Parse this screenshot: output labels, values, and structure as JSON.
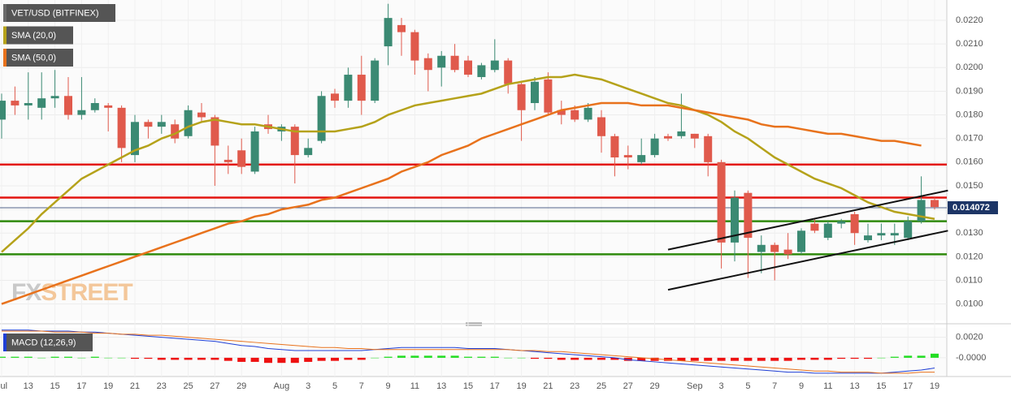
{
  "chart_data": [
    {
      "type": "candlestick",
      "watermark": [
        "FX",
        "STREET"
      ],
      "categories": [
        "Jul",
        null,
        "13",
        null,
        "15",
        null,
        "17",
        null,
        "19",
        null,
        "21",
        null,
        "23",
        null,
        "25",
        null,
        "27",
        null,
        "29",
        null,
        null,
        "Aug",
        null,
        "3",
        null,
        "5",
        null,
        "7",
        null,
        "9",
        null,
        "11",
        null,
        "13",
        null,
        "15",
        null,
        "17",
        null,
        "19",
        null,
        "21",
        null,
        "23",
        null,
        "25",
        null,
        "27",
        null,
        "29",
        null,
        null,
        "Sep",
        null,
        "3",
        null,
        "5",
        null,
        "7",
        null,
        "9",
        null,
        "11",
        null,
        "13",
        null,
        "15",
        null,
        "17",
        null,
        "19"
      ],
      "up_color": "#3b8a73",
      "down_color": "#e05a4c",
      "series": [
        {
          "name": "VET/USD (BITFINEX)",
          "color": "#6b6b6b",
          "open": [
            0.0178,
            0.0186,
            0.0184,
            0.0183,
            0.0187,
            0.0188,
            0.018,
            0.0182,
            0.0184,
            0.0183,
            0.0163,
            0.0177,
            0.0175,
            0.0176,
            0.0171,
            0.0181,
            0.0179,
            0.0161,
            0.0165,
            0.0156,
            0.0176,
            0.0173,
            0.0175,
            0.0163,
            0.0169,
            0.0189,
            0.0186,
            0.0197,
            0.0186,
            0.0209,
            0.0218,
            0.0215,
            0.0204,
            0.02,
            0.0205,
            0.0203,
            0.0196,
            0.0199,
            0.0203,
            0.0193,
            0.0185,
            0.0195,
            0.0182,
            0.0182,
            0.0178,
            0.0179,
            0.0171,
            0.0163,
            0.016,
            0.0163,
            0.0171,
            0.0171,
            0.0172,
            0.0171,
            0.016,
            0.0126,
            0.0147,
            0.0122,
            0.0125,
            0.0123,
            0.0122,
            0.0134,
            0.0128,
            0.0134,
            0.0138,
            0.0127,
            0.0129,
            0.0129,
            0.0128,
            0.0135,
            0.0144
          ],
          "high": [
            0.0189,
            0.0192,
            0.0198,
            0.0198,
            0.0199,
            0.0196,
            0.0196,
            0.0187,
            0.0185,
            0.0184,
            0.018,
            0.0178,
            0.018,
            0.0178,
            0.0184,
            0.0185,
            0.018,
            0.0167,
            0.017,
            0.0175,
            0.018,
            0.0176,
            0.0176,
            0.017,
            0.019,
            0.0191,
            0.02,
            0.0205,
            0.0204,
            0.0227,
            0.0221,
            0.0216,
            0.0206,
            0.0207,
            0.021,
            0.0205,
            0.0202,
            0.0212,
            0.0204,
            0.0194,
            0.0196,
            0.0198,
            0.0186,
            0.0184,
            0.0185,
            0.0182,
            0.0172,
            0.0167,
            0.017,
            0.0172,
            0.0172,
            0.0189,
            0.0172,
            0.0172,
            0.0161,
            0.0148,
            0.0148,
            0.0129,
            0.0126,
            0.013,
            0.0132,
            0.0136,
            0.0135,
            0.0136,
            0.0139,
            0.0134,
            0.0134,
            0.0134,
            0.0137,
            0.0154,
            0.0145
          ],
          "low": [
            0.017,
            0.018,
            0.0178,
            0.0178,
            0.0183,
            0.0178,
            0.0178,
            0.0181,
            0.0173,
            0.016,
            0.016,
            0.017,
            0.0172,
            0.0168,
            0.017,
            0.0177,
            0.015,
            0.0155,
            0.0155,
            0.0155,
            0.0172,
            0.0169,
            0.0151,
            0.0162,
            0.0168,
            0.0183,
            0.0183,
            0.018,
            0.0185,
            0.0201,
            0.0205,
            0.0197,
            0.019,
            0.0192,
            0.0198,
            0.0196,
            0.0195,
            0.0198,
            0.0189,
            0.0169,
            0.0182,
            0.018,
            0.0176,
            0.0177,
            0.0177,
            0.0164,
            0.0154,
            0.0157,
            0.0159,
            0.0162,
            0.0169,
            0.017,
            0.0166,
            0.0154,
            0.0115,
            0.0118,
            0.0111,
            0.0113,
            0.011,
            0.0119,
            0.0121,
            0.013,
            0.0127,
            0.0132,
            0.0125,
            0.0126,
            0.0127,
            0.0125,
            0.0127,
            0.0134,
            0.014
          ],
          "close": [
            0.0186,
            0.0184,
            0.0185,
            0.0187,
            0.0188,
            0.018,
            0.0182,
            0.0185,
            0.0183,
            0.0166,
            0.0177,
            0.0175,
            0.0177,
            0.017,
            0.0182,
            0.0179,
            0.0167,
            0.016,
            0.0158,
            0.0173,
            0.0174,
            0.0175,
            0.0163,
            0.0166,
            0.0188,
            0.0186,
            0.0197,
            0.0186,
            0.0203,
            0.0221,
            0.0215,
            0.0203,
            0.0199,
            0.0205,
            0.0199,
            0.0197,
            0.0201,
            0.0203,
            0.0193,
            0.0182,
            0.0194,
            0.0181,
            0.018,
            0.0178,
            0.0183,
            0.0171,
            0.0162,
            0.0162,
            0.0163,
            0.017,
            0.017,
            0.0173,
            0.017,
            0.016,
            0.0126,
            0.0145,
            0.0128,
            0.0125,
            0.0122,
            0.0121,
            0.0131,
            0.0131,
            0.0134,
            0.0135,
            0.013,
            0.0129,
            0.013,
            0.013,
            0.0135,
            0.0144,
            0.0141
          ]
        },
        {
          "name": "SMA (20,0)",
          "color": "#b5a21a",
          "values": [
            0.0122,
            0.0127,
            0.0132,
            0.0138,
            0.0143,
            0.0148,
            0.0153,
            0.0156,
            0.0159,
            0.0162,
            0.0165,
            0.0167,
            0.017,
            0.0172,
            0.0175,
            0.0177,
            0.0178,
            0.0177,
            0.0176,
            0.0176,
            0.0175,
            0.0174,
            0.0173,
            0.0173,
            0.0173,
            0.0173,
            0.0174,
            0.0175,
            0.0177,
            0.018,
            0.0182,
            0.0184,
            0.0185,
            0.0186,
            0.0187,
            0.0188,
            0.0189,
            0.0191,
            0.0193,
            0.0194,
            0.0195,
            0.0196,
            0.0196,
            0.0197,
            0.0196,
            0.0195,
            0.0193,
            0.0191,
            0.0189,
            0.0187,
            0.0185,
            0.0184,
            0.0182,
            0.018,
            0.0177,
            0.0173,
            0.017,
            0.0166,
            0.0162,
            0.0159,
            0.0156,
            0.0153,
            0.0151,
            0.0149,
            0.0146,
            0.0143,
            0.0141,
            0.0139,
            0.0138,
            0.0137,
            0.0136
          ]
        },
        {
          "name": "SMA (50,0)",
          "color": "#e8721c",
          "values": [
            0.01,
            0.0102,
            0.0104,
            0.0106,
            0.0108,
            0.011,
            0.0112,
            0.0114,
            0.0116,
            0.0118,
            0.012,
            0.0122,
            0.0124,
            0.0126,
            0.0128,
            0.013,
            0.0132,
            0.0134,
            0.0135,
            0.0137,
            0.0138,
            0.014,
            0.0141,
            0.0142,
            0.0144,
            0.0145,
            0.0147,
            0.0149,
            0.0151,
            0.0153,
            0.0156,
            0.0158,
            0.016,
            0.0163,
            0.0165,
            0.0167,
            0.017,
            0.0172,
            0.0174,
            0.0176,
            0.0178,
            0.018,
            0.0182,
            0.0183,
            0.0184,
            0.0185,
            0.0185,
            0.0185,
            0.0184,
            0.0184,
            0.0184,
            0.0183,
            0.0182,
            0.0181,
            0.018,
            0.0179,
            0.0178,
            0.0176,
            0.0175,
            0.0175,
            0.0174,
            0.0173,
            0.0172,
            0.0172,
            0.0171,
            0.017,
            0.0169,
            0.0169,
            0.0168,
            0.0167,
            null
          ]
        }
      ],
      "levels": [
        {
          "value": 0.0159,
          "color": "#e3140f"
        },
        {
          "value": 0.0145,
          "color": "#e3140f"
        },
        {
          "value": 0.0135,
          "color": "#2f8a0c"
        },
        {
          "value": 0.0121,
          "color": "#2f8a0c"
        }
      ],
      "trendlines": [
        {
          "color": "#111111",
          "points": [
            [
              50,
              0.0123
            ],
            [
              71,
              0.0148
            ]
          ]
        },
        {
          "color": "#111111",
          "points": [
            [
              50,
              0.0106
            ],
            [
              71,
              0.0131
            ]
          ]
        }
      ],
      "last_price": 0.014072,
      "last_price_color": "#1d3566",
      "ylim": [
        0.0093,
        0.02286
      ],
      "yticks": [
        {
          "value": 0.01,
          "label": "0.0100"
        },
        {
          "value": 0.011,
          "label": "0.0110"
        },
        {
          "value": 0.012,
          "label": "0.0120"
        },
        {
          "value": 0.013,
          "label": "0.0130"
        },
        {
          "value": 0.014,
          "label": "0.0140"
        },
        {
          "value": 0.015,
          "label": "0.0150"
        },
        {
          "value": 0.016,
          "label": "0.0160"
        },
        {
          "value": 0.017,
          "label": "0.0170"
        },
        {
          "value": 0.018,
          "label": "0.0180"
        },
        {
          "value": 0.019,
          "label": "0.0190"
        },
        {
          "value": 0.02,
          "label": "0.0200"
        },
        {
          "value": 0.021,
          "label": "0.0210"
        },
        {
          "value": 0.022,
          "label": "0.0220"
        }
      ],
      "grid": true
    },
    {
      "type": "macd",
      "title": "MACD (12,26,9)",
      "series": [
        {
          "color": "#1f3fd6",
          "values": [
            0.0027,
            0.0027,
            0.0027,
            0.0026,
            0.0026,
            0.0026,
            0.0025,
            0.0025,
            0.0024,
            0.0023,
            0.0022,
            0.0021,
            0.002,
            0.0019,
            0.0018,
            0.0017,
            0.0016,
            0.0014,
            0.0012,
            0.0011,
            0.0009,
            0.0008,
            0.0007,
            0.0007,
            0.0007,
            0.0007,
            0.0007,
            0.0007,
            0.0008,
            0.0009,
            0.001,
            0.001,
            0.001,
            0.001,
            0.001,
            0.0009,
            0.0009,
            0.0009,
            0.0008,
            0.0007,
            0.0006,
            0.0005,
            0.0004,
            0.0003,
            0.0002,
            0.0001,
            0.0,
            -0.0002,
            -0.0003,
            -0.0004,
            -0.0005,
            -0.0006,
            -0.0007,
            -0.0008,
            -0.0009,
            -0.001,
            -0.0011,
            -0.0012,
            -0.0013,
            -0.0014,
            -0.0014,
            -0.0015,
            -0.0015,
            -0.0015,
            -0.0015,
            -0.0015,
            -0.0015,
            -0.0014,
            -0.0013,
            -0.0012,
            -0.001
          ]
        },
        {
          "color": "#e8721c",
          "values": [
            0.0026,
            0.0026,
            0.0026,
            0.0026,
            0.0025,
            0.0025,
            0.0025,
            0.0024,
            0.0024,
            0.0023,
            0.0023,
            0.0022,
            0.0022,
            0.0021,
            0.002,
            0.0019,
            0.0018,
            0.0017,
            0.0016,
            0.0015,
            0.0014,
            0.0013,
            0.0012,
            0.0011,
            0.001,
            0.001,
            0.0009,
            0.0009,
            0.0008,
            0.0008,
            0.0008,
            0.0008,
            0.0008,
            0.0008,
            0.0008,
            0.0008,
            0.0008,
            0.0008,
            0.0008,
            0.0007,
            0.0007,
            0.0006,
            0.0006,
            0.0005,
            0.0004,
            0.0003,
            0.0002,
            0.0001,
            0.0,
            -0.0001,
            -0.0002,
            -0.0003,
            -0.0004,
            -0.0005,
            -0.0006,
            -0.0007,
            -0.0008,
            -0.0009,
            -0.001,
            -0.0011,
            -0.0012,
            -0.0013,
            -0.0013,
            -0.0014,
            -0.0014,
            -0.0014,
            -0.0015,
            -0.0015,
            -0.0015,
            -0.0014,
            -0.0014
          ]
        }
      ],
      "histogram": [
        0.0001,
        0.0001,
        0.0001,
        0,
        0.0001,
        0.0001,
        0,
        0.0001,
        0,
        0,
        -0.0001,
        -0.0001,
        -0.0002,
        -0.0002,
        -0.0002,
        -0.0002,
        -0.0002,
        -0.0003,
        -0.0004,
        -0.0004,
        -0.0005,
        -0.0005,
        -0.0005,
        -0.0004,
        -0.0003,
        -0.0003,
        -0.0002,
        -0.0002,
        0,
        0.0001,
        0.0002,
        0.0002,
        0.0002,
        0.0002,
        0.0002,
        0.0001,
        0.0001,
        0.0001,
        0,
        0,
        -0.0001,
        -0.0001,
        -0.0002,
        -0.0002,
        -0.0002,
        -0.0002,
        -0.0002,
        -0.0003,
        -0.0003,
        -0.0003,
        -0.0003,
        -0.0003,
        -0.0003,
        -0.0003,
        -0.0003,
        -0.0003,
        -0.0003,
        -0.0003,
        -0.0003,
        -0.0003,
        -0.0002,
        -0.0002,
        -0.0002,
        -0.0001,
        -0.0001,
        -0.0001,
        0,
        0.0001,
        0.0002,
        0.0002,
        0.0004
      ],
      "histogram_colors": [
        "#22dd22",
        "#ee1111"
      ],
      "ylim": [
        -0.00183,
        0.00292
      ],
      "yticks": [
        {
          "value": 0.002,
          "label": "0.0020"
        },
        {
          "value": 0,
          "label": "-0.0000"
        }
      ]
    }
  ]
}
